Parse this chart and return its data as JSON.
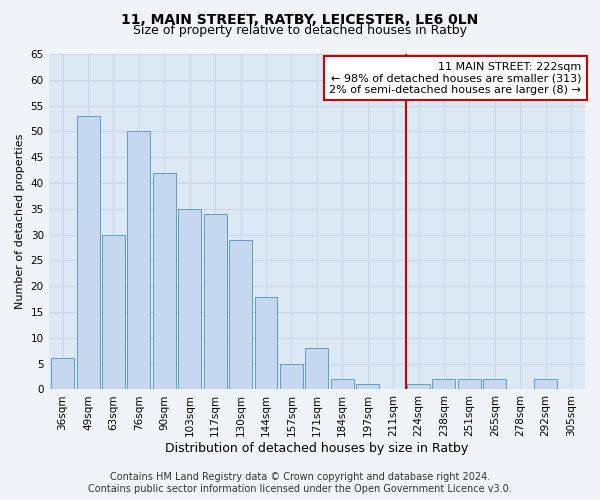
{
  "title": "11, MAIN STREET, RATBY, LEICESTER, LE6 0LN",
  "subtitle": "Size of property relative to detached houses in Ratby",
  "xlabel": "Distribution of detached houses by size in Ratby",
  "ylabel": "Number of detached properties",
  "footer1": "Contains HM Land Registry data © Crown copyright and database right 2024.",
  "footer2": "Contains public sector information licensed under the Open Government Licence v3.0.",
  "bar_labels": [
    "36sqm",
    "49sqm",
    "63sqm",
    "76sqm",
    "90sqm",
    "103sqm",
    "117sqm",
    "130sqm",
    "144sqm",
    "157sqm",
    "171sqm",
    "184sqm",
    "197sqm",
    "211sqm",
    "224sqm",
    "238sqm",
    "251sqm",
    "265sqm",
    "278sqm",
    "292sqm",
    "305sqm"
  ],
  "bar_values": [
    6,
    53,
    30,
    50,
    42,
    35,
    34,
    29,
    18,
    5,
    8,
    2,
    1,
    0,
    1,
    2,
    2,
    2,
    0,
    2,
    0
  ],
  "bar_color": "#c5d8f0",
  "bar_edge_color": "#5f9ec0",
  "ylim": [
    0,
    65
  ],
  "yticks": [
    0,
    5,
    10,
    15,
    20,
    25,
    30,
    35,
    40,
    45,
    50,
    55,
    60,
    65
  ],
  "vline_color": "#cc0000",
  "annotation_line1": "11 MAIN STREET: 222sqm",
  "annotation_line2": "← 98% of detached houses are smaller (313)",
  "annotation_line3": "2% of semi-detached houses are larger (8) →",
  "annotation_box_color": "#cc0000",
  "annotation_bg": "#ffffff",
  "grid_color": "#c8d4e8",
  "bg_color": "#dce8f4",
  "fig_bg_color": "#f0f4f8",
  "title_fontsize": 10,
  "subtitle_fontsize": 9,
  "xlabel_fontsize": 9,
  "ylabel_fontsize": 8,
  "tick_fontsize": 7.5,
  "annotation_fontsize": 8,
  "footer_fontsize": 7
}
